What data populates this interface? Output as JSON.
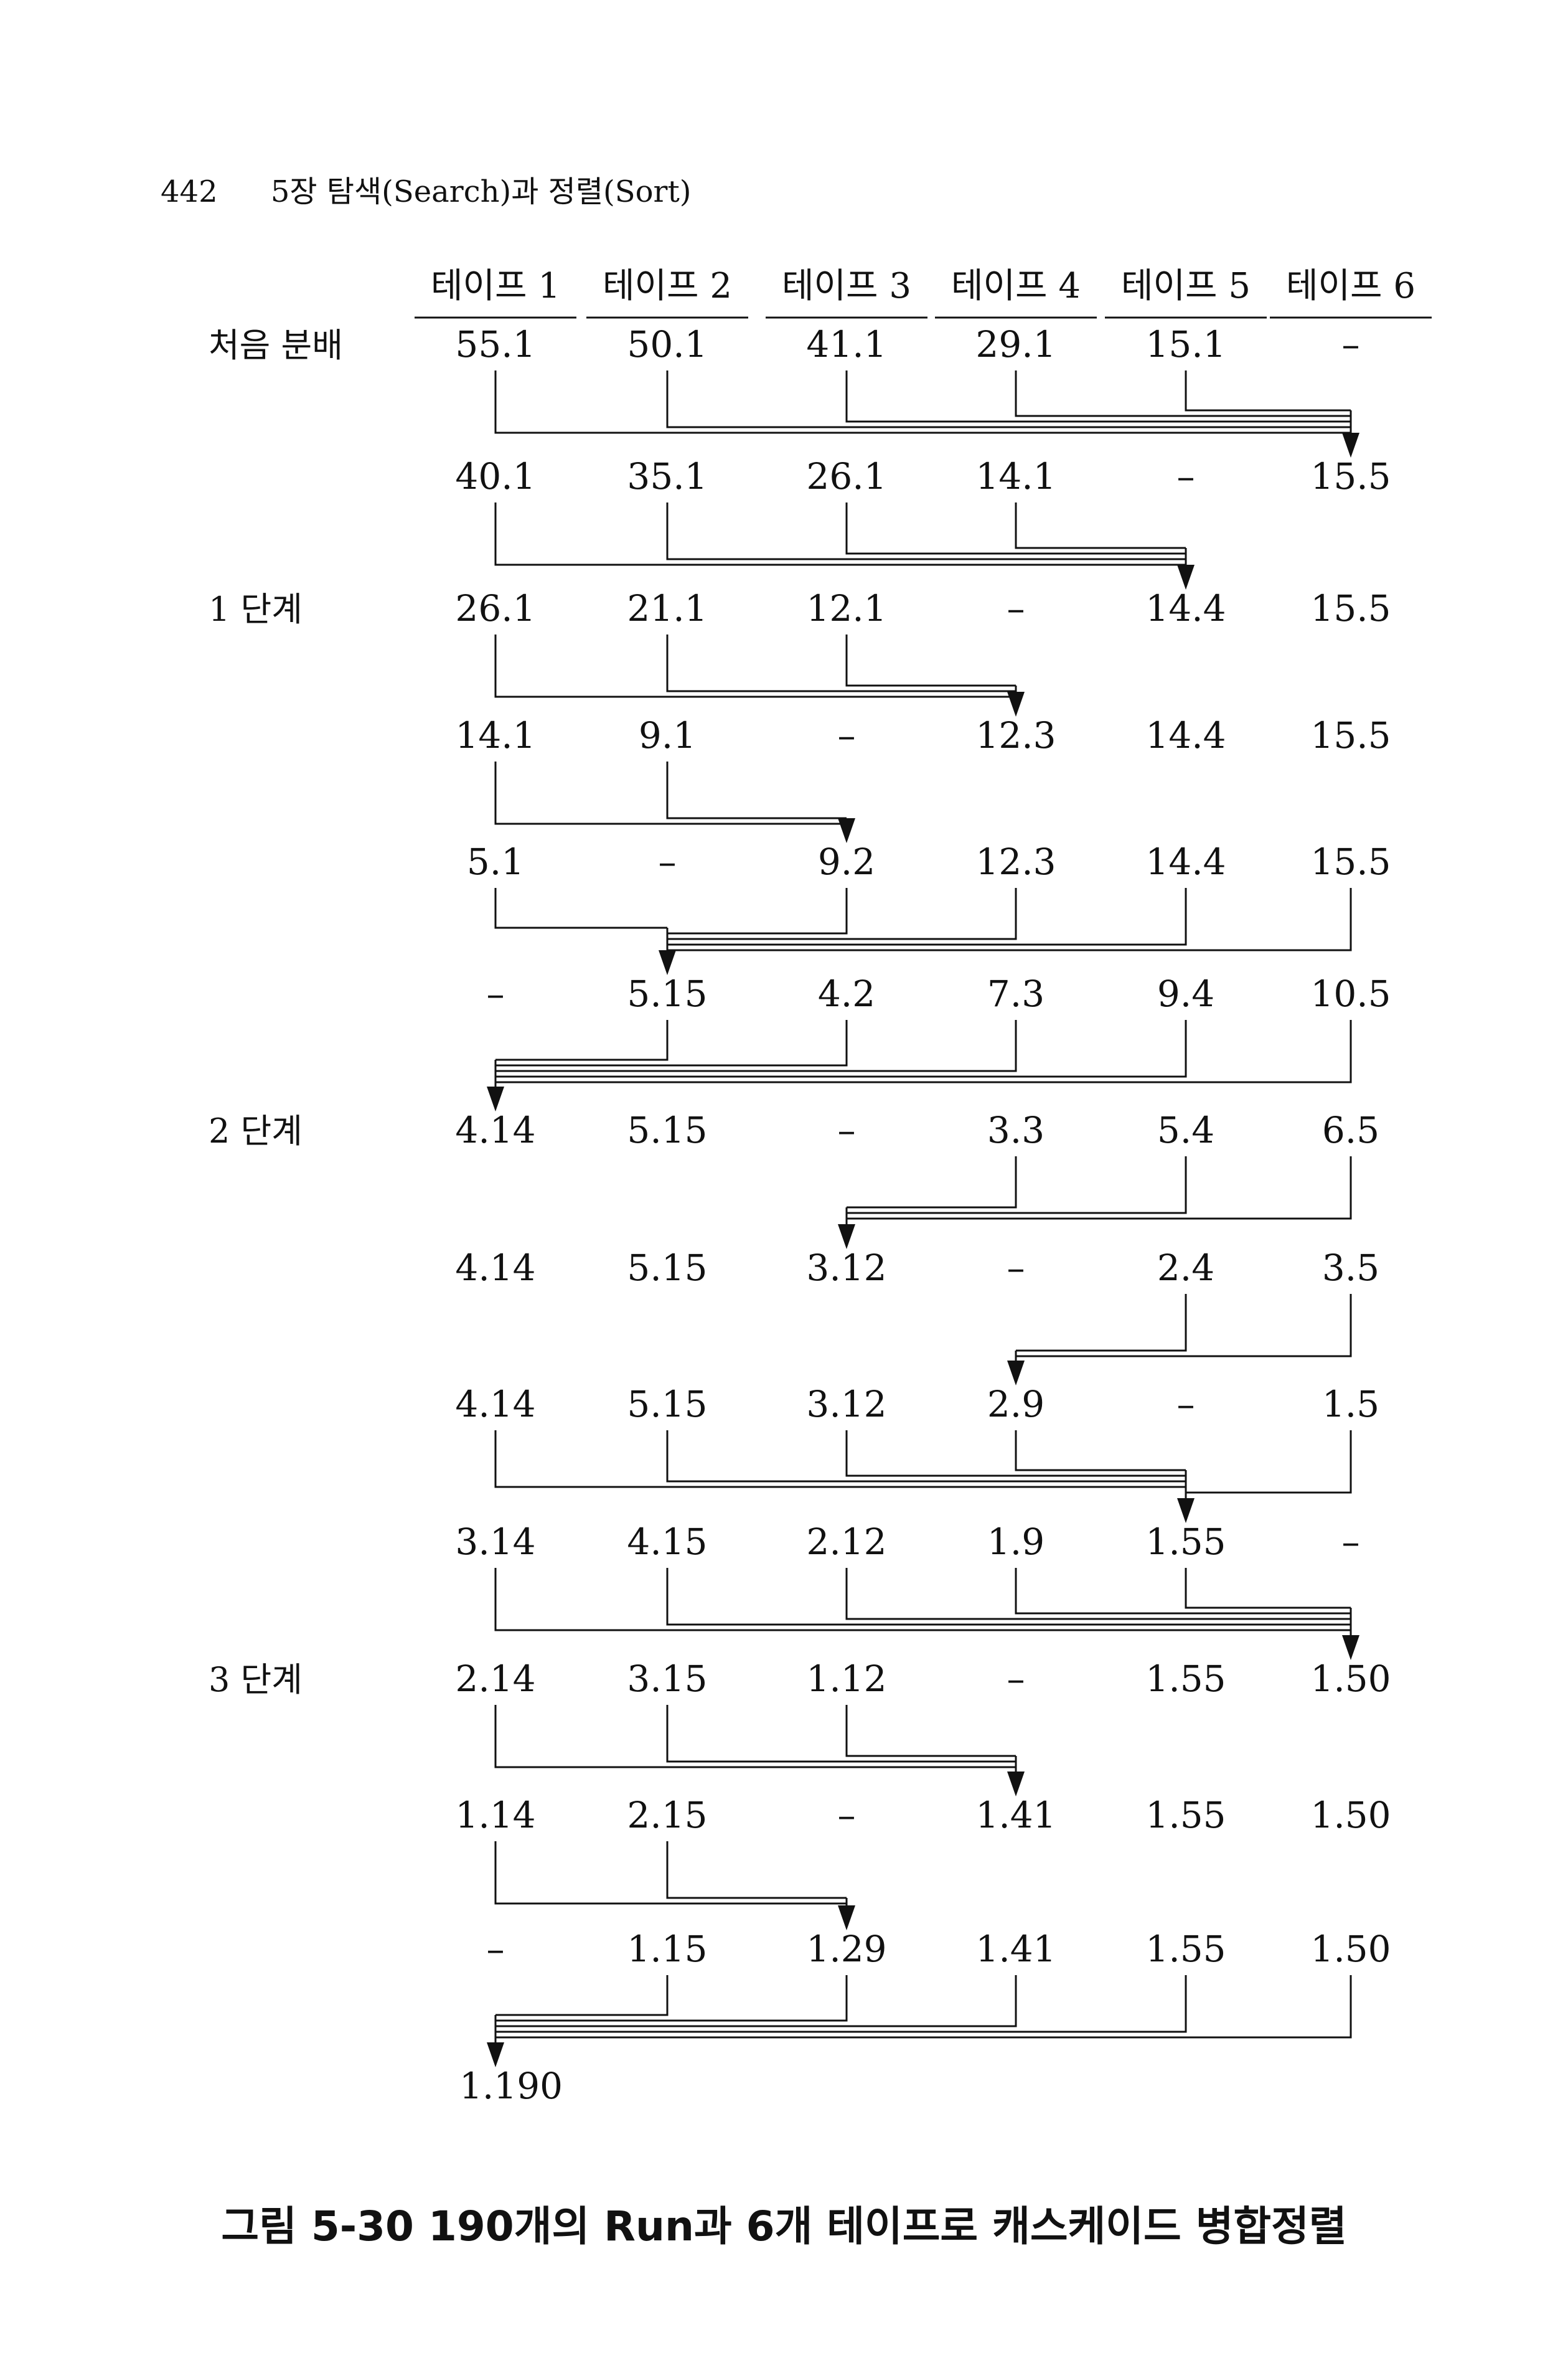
{
  "header": {
    "page_number": "442",
    "chapter_title": "5장  탐색(Search)과 정렬(Sort)"
  },
  "columns": [
    "테이프 1",
    "테이프 2",
    "테이프 3",
    "테이프 4",
    "테이프 5",
    "테이프 6"
  ],
  "row_labels": [
    "처음 분배",
    "1 단계",
    "2 단계",
    "3 단계"
  ],
  "rows": [
    {
      "label_index": 0,
      "cells": [
        "55.1",
        "50.1",
        "41.1",
        "29.1",
        "15.1",
        "–"
      ],
      "sources": [
        0,
        1,
        2,
        3,
        4
      ],
      "target": 5
    },
    {
      "cells": [
        "40.1",
        "35.1",
        "26.1",
        "14.1",
        "–",
        "15.5"
      ],
      "sources": [
        0,
        1,
        2,
        3
      ],
      "target": 4
    },
    {
      "label_index": 1,
      "cells": [
        "26.1",
        "21.1",
        "12.1",
        "–",
        "14.4",
        "15.5"
      ],
      "sources": [
        0,
        1,
        2
      ],
      "target": 3
    },
    {
      "cells": [
        "14.1",
        "9.1",
        "–",
        "12.3",
        "14.4",
        "15.5"
      ],
      "sources": [
        0,
        1
      ],
      "target": 2
    },
    {
      "cells": [
        "5.1",
        "–",
        "9.2",
        "12.3",
        "14.4",
        "15.5"
      ],
      "sources": [
        0,
        2,
        3,
        4,
        5
      ],
      "target": 1
    },
    {
      "cells": [
        "–",
        "5.15",
        "4.2",
        "7.3",
        "9.4",
        "10.5"
      ],
      "sources": [
        1,
        2,
        3,
        4,
        5
      ],
      "target": 0
    },
    {
      "label_index": 2,
      "cells": [
        "4.14",
        "5.15",
        "–",
        "3.3",
        "5.4",
        "6.5"
      ],
      "sources": [
        3,
        4,
        5
      ],
      "target": 2
    },
    {
      "cells": [
        "4.14",
        "5.15",
        "3.12",
        "–",
        "2.4",
        "3.5"
      ],
      "sources": [
        4,
        5
      ],
      "target": 3
    },
    {
      "cells": [
        "4.14",
        "5.15",
        "3.12",
        "2.9",
        "–",
        "1.5"
      ],
      "sources": [
        0,
        1,
        2,
        3,
        5
      ],
      "target": 4
    },
    {
      "cells": [
        "3.14",
        "4.15",
        "2.12",
        "1.9",
        "1.55",
        "–"
      ],
      "sources": [
        0,
        1,
        2,
        3,
        4
      ],
      "target": 5
    },
    {
      "label_index": 3,
      "cells": [
        "2.14",
        "3.15",
        "1.12",
        "–",
        "1.55",
        "1.50"
      ],
      "sources": [
        0,
        1,
        2
      ],
      "target": 3
    },
    {
      "cells": [
        "1.14",
        "2.15",
        "–",
        "1.41",
        "1.55",
        "1.50"
      ],
      "sources": [
        0,
        1
      ],
      "target": 2
    },
    {
      "cells": [
        "–",
        "1.15",
        "1.29",
        "1.41",
        "1.55",
        "1.50"
      ],
      "sources": [
        1,
        2,
        3,
        4,
        5
      ],
      "target": 0
    }
  ],
  "result": "1.190",
  "caption": "그림 5-30   190개의 Run과 6개 테이프로 캐스케이드 병합정렬"
}
